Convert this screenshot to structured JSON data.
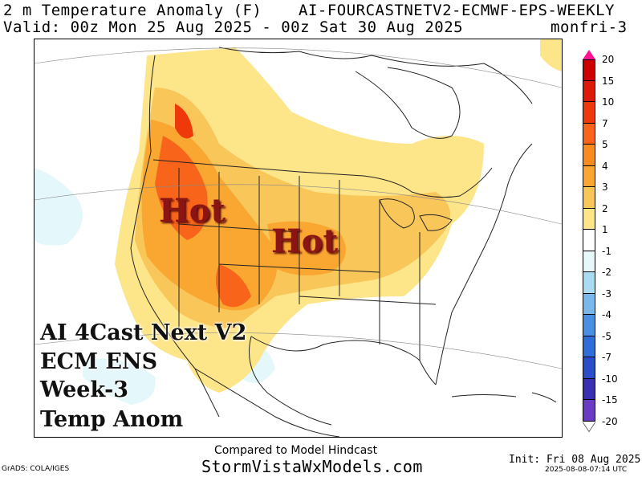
{
  "header": {
    "title_left": "2 m Temperature Anomaly (F)",
    "title_right": "AI-FOURCASTNETV2-ECMWF-EPS-WEEKLY",
    "valid_line": "Valid: 00z Mon 25 Aug 2025 - 00z Sat 30 Aug 2025",
    "period": "monfri-3"
  },
  "overlay": {
    "line1": "AI 4Cast Next V2",
    "line2": "ECM ENS",
    "line3": "Week-3",
    "line4": "Temp Anom",
    "hot_west": "Hot",
    "hot_central": "Hot"
  },
  "colorbar": {
    "labels": [
      "20",
      "15",
      "10",
      "7",
      "5",
      "4",
      "3",
      "2",
      "1",
      "-1",
      "-2",
      "-3",
      "-4",
      "-5",
      "-7",
      "-10",
      "-15",
      "-20"
    ],
    "colors": [
      "#ff1493",
      "#cc0000",
      "#dd1a0a",
      "#ee3a0a",
      "#f8651a",
      "#f88c1e",
      "#f9a731",
      "#f9c65a",
      "#fde58a",
      "#ffffff",
      "#e6f8fa",
      "#a9dcf1",
      "#7ab8ea",
      "#4a90e2",
      "#2f6ed8",
      "#2a4dc8",
      "#3a2fb0",
      "#6a3cc4",
      "#9b20e8"
    ]
  },
  "footer": {
    "compared": "Compared to Model Hindcast",
    "site": "StormVistaWxModels.com",
    "init": "Init: Fri 08 Aug 2025",
    "grads": "GrADS: COLA/IGES",
    "timestamp": "2025-08-08-07:14 UTC"
  }
}
